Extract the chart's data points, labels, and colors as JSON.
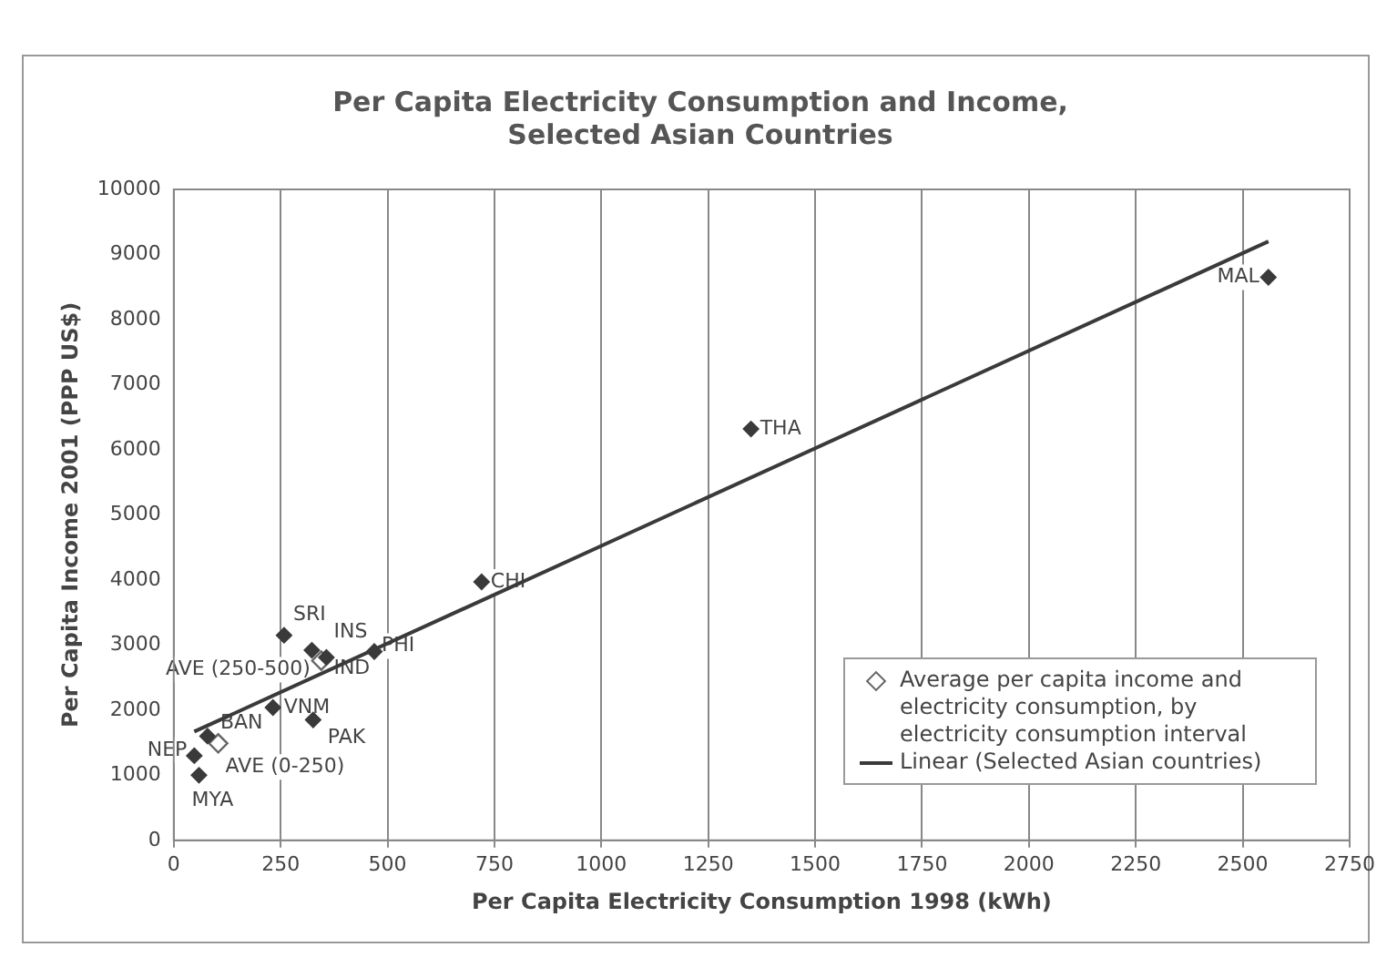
{
  "chart_data": {
    "type": "scatter",
    "title": "Per Capita Electricity Consumption and Income,\nSelected Asian Countries",
    "xlabel": "Per Capita Electricity Consumption 1998 (kWh)",
    "ylabel": "Per Capita Income 2001 (PPP US$)",
    "xlim": [
      0,
      2750
    ],
    "xticks": [
      0,
      250,
      500,
      750,
      1000,
      1250,
      1500,
      1750,
      2000,
      2250,
      2500,
      2750
    ],
    "ylim": [
      0,
      10000
    ],
    "yticks": [
      0,
      1000,
      2000,
      3000,
      4000,
      5000,
      6000,
      7000,
      8000,
      9000,
      10000
    ],
    "grid": "x",
    "legend": "bottom right",
    "series": [
      {
        "marker": "diamond",
        "color": "#3a3a3a",
        "x": [
          2560,
          1350,
          720,
          469,
          258,
          323,
          357,
          232,
          326,
          79,
          48,
          59
        ],
        "values": [
          8650,
          6320,
          3970,
          2900,
          3150,
          2920,
          2810,
          2040,
          1850,
          1600,
          1300,
          1000
        ]
      },
      {
        "marker": "diamond",
        "name": "Average per capita income and electricity consumption, by electricity consumption interval",
        "color": "#666666",
        "x": [
          345,
          104
        ],
        "values": [
          2760,
          1490
        ]
      },
      {
        "type": "line",
        "name": "Linear (Selected Asian countries)",
        "color": "#3a3a3a",
        "x": [
          48,
          2560
        ],
        "values": [
          1670,
          9200
        ]
      }
    ],
    "annotations": [
      {
        "text": "MAL",
        "x": 2560,
        "y": 8650
      },
      {
        "text": "THA",
        "x": 1350,
        "y": 6320
      },
      {
        "text": "CHI",
        "x": 720,
        "y": 3970
      },
      {
        "text": "PHI",
        "x": 469,
        "y": 2900
      },
      {
        "text": "SRI",
        "x": 258,
        "y": 3150
      },
      {
        "text": "INS",
        "x": 323,
        "y": 2920
      },
      {
        "text": "IND",
        "x": 357,
        "y": 2810
      },
      {
        "text": "AVE (250-500)",
        "x": 345,
        "y": 2760
      },
      {
        "text": "VNM",
        "x": 232,
        "y": 2040
      },
      {
        "text": "PAK",
        "x": 326,
        "y": 1850
      },
      {
        "text": "BAN",
        "x": 79,
        "y": 1600
      },
      {
        "text": "AVE (0-250)",
        "x": 104,
        "y": 1490
      },
      {
        "text": "NEP",
        "x": 48,
        "y": 1300
      },
      {
        "text": "MYA",
        "x": 59,
        "y": 1000
      }
    ]
  }
}
